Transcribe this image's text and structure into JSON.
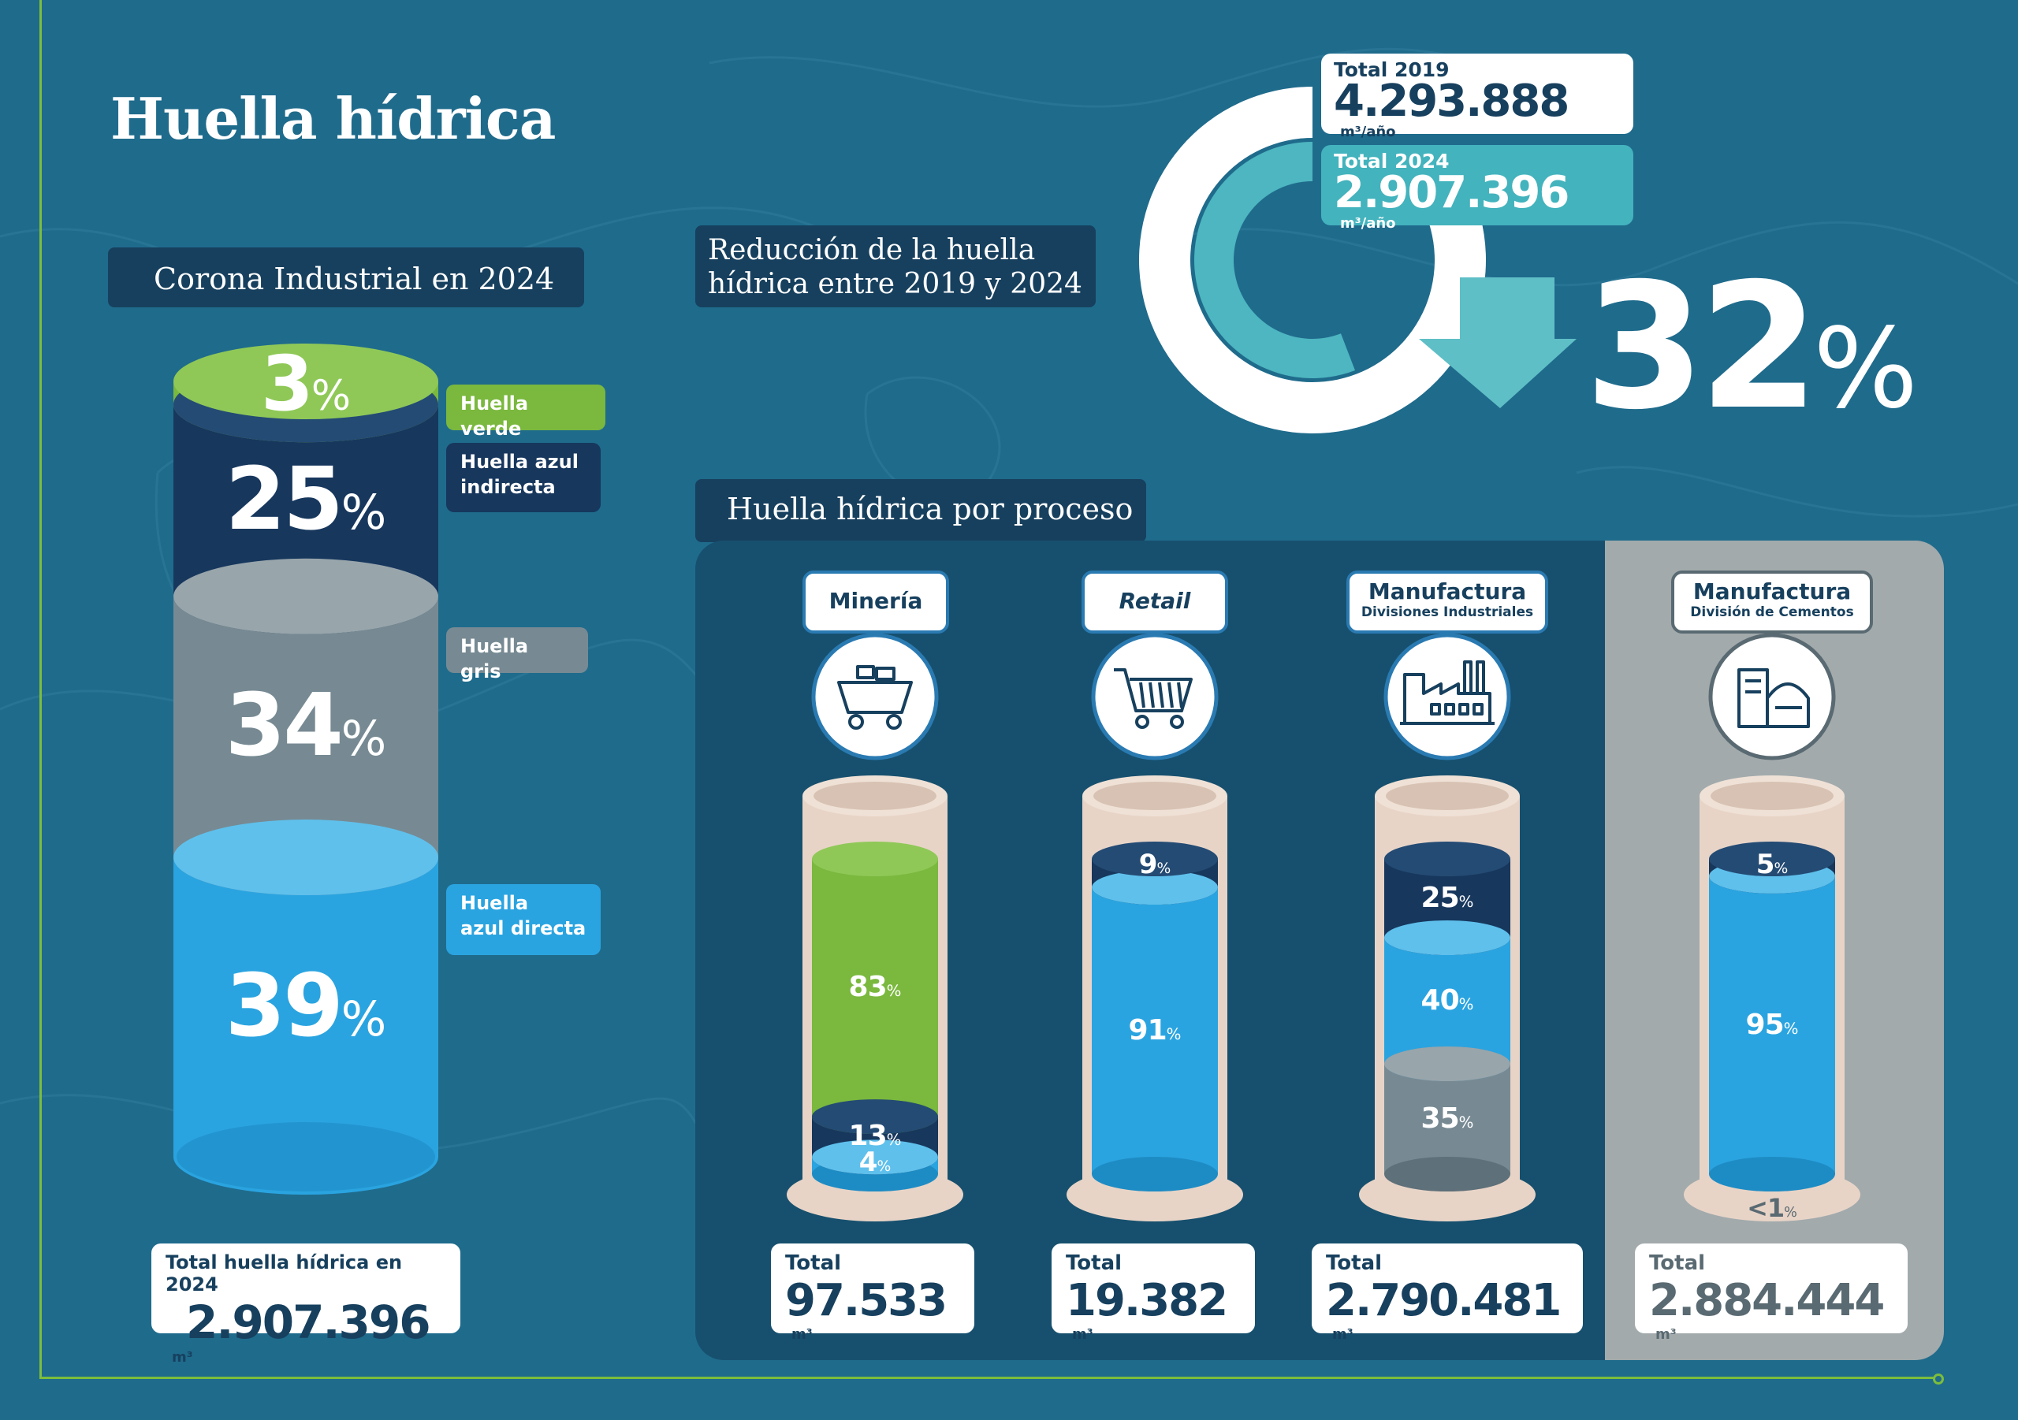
{
  "page": {
    "title": "Huella hídrica"
  },
  "corona": {
    "label": "Corona Industrial en 2024",
    "total_label": "Total huella hídrica en 2024",
    "total_value": "2.907.396",
    "total_unit": "m³"
  },
  "reduction": {
    "label_line1": "Reducción de la huella",
    "label_line2": "hídrica entre 2019 y 2024",
    "total2019_label": "Total 2019",
    "total2019_value": "4.293.888",
    "total2024_label": "Total 2024",
    "total2024_value": "2.907.396",
    "unit": "m³/año",
    "percent_value": "32",
    "percent_sym": "%"
  },
  "process": {
    "label": "Huella hídrica por proceso"
  },
  "total_word": "Total",
  "colors": {
    "verde": "#7ab83e",
    "azul_indirecta": "#17375d",
    "gris": "#778a93",
    "azul_directa": "#2aa4e0",
    "cylinder_shell": "#e8d4c7",
    "grey_panel": "#a2aaac",
    "process_panel": "#17506e"
  },
  "chart_data": [
    {
      "type": "bar",
      "title": "Corona Industrial en 2024",
      "stacked": true,
      "series": [
        {
          "name": "Huella azul directa",
          "values": [
            39
          ],
          "label": "39"
        },
        {
          "name": "Huella gris",
          "values": [
            34
          ],
          "label": "34"
        },
        {
          "name": "Huella azul indirecta",
          "values": [
            25
          ],
          "label": "25"
        },
        {
          "name": "Huella verde",
          "values": [
            3
          ],
          "label": "3"
        }
      ],
      "legend": [
        "Huella verde",
        "Huella azul indirecta",
        "Huella gris",
        "Huella azul directa"
      ],
      "legend_lines": [
        [
          "Huella verde"
        ],
        [
          "Huella azul",
          "indirecta"
        ],
        [
          "Huella gris"
        ],
        [
          "Huella",
          "azul directa"
        ]
      ],
      "total": "2.907.396"
    },
    {
      "type": "pie",
      "title": "Reducción de la huella hídrica entre 2019 y 2024",
      "categories": [
        "Total 2019",
        "Total 2024"
      ],
      "values": [
        4293888,
        2907396
      ],
      "unit": "m³/año",
      "reduction_percent": 32
    },
    {
      "type": "bar",
      "title": "Huella hídrica por proceso",
      "stacked": true,
      "processes": [
        {
          "name": "Minería",
          "sub": "",
          "italic": false,
          "icon": "mining-cart-icon",
          "total": "97.533",
          "unit": "m³",
          "segments": [
            {
              "series": "Huella azul directa",
              "value": 4,
              "label": "4"
            },
            {
              "series": "Huella azul indirecta",
              "value": 13,
              "label": "13"
            },
            {
              "series": "Huella verde",
              "value": 83,
              "label": "83"
            }
          ]
        },
        {
          "name": "Retail",
          "sub": "",
          "italic": true,
          "icon": "shopping-cart-icon",
          "total": "19.382",
          "unit": "m³",
          "segments": [
            {
              "series": "Huella azul directa",
              "value": 91,
              "label": "91"
            },
            {
              "series": "Huella azul indirecta",
              "value": 9,
              "label": "9"
            }
          ]
        },
        {
          "name": "Manufactura",
          "sub": "Divisiones Industriales",
          "italic": false,
          "icon": "factory-icon",
          "total": "2.790.481",
          "unit": "m³",
          "segments": [
            {
              "series": "Huella gris",
              "value": 35,
              "label": "35"
            },
            {
              "series": "Huella azul directa",
              "value": 40,
              "label": "40"
            },
            {
              "series": "Huella azul indirecta",
              "value": 25,
              "label": "25"
            }
          ]
        },
        {
          "name": "Manufactura",
          "sub": "División de Cementos",
          "italic": false,
          "icon": "cement-bag-icon",
          "total": "2.884.444",
          "unit": "m³",
          "bottom_label": "<1",
          "segments": [
            {
              "series": "Huella azul directa",
              "value": 95,
              "label": "95"
            },
            {
              "series": "Huella azul indirecta",
              "value": 5,
              "label": "5"
            }
          ]
        }
      ]
    }
  ]
}
